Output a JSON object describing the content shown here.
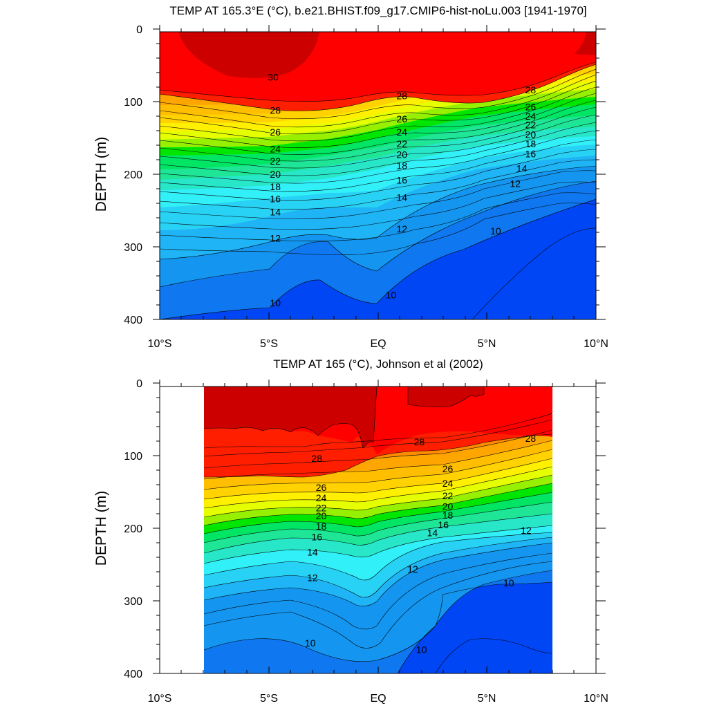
{
  "figure": {
    "panels": [
      {
        "title": "TEMP AT 165.3°E (°C), b.e21.BHIST.f09_g17.CMIP6-hist-noLu.003 [1941-1970]",
        "ylabel": "DEPTH (m)",
        "x_ticks": [
          "10°S",
          "5°S",
          "EQ",
          "5°N",
          "10°N"
        ],
        "y_ticks": [
          "0",
          "100",
          "200",
          "300",
          "400"
        ],
        "contour_labels": [
          {
            "v": "30",
            "lat": -4.8,
            "d": 66
          },
          {
            "v": "28",
            "lat": -4.7,
            "d": 112
          },
          {
            "v": "28",
            "lat": 1.1,
            "d": 92
          },
          {
            "v": "28",
            "lat": 7.0,
            "d": 84
          },
          {
            "v": "26",
            "lat": -4.7,
            "d": 142
          },
          {
            "v": "26",
            "lat": 1.1,
            "d": 124
          },
          {
            "v": "26",
            "lat": 7.0,
            "d": 107
          },
          {
            "v": "24",
            "lat": -4.7,
            "d": 165
          },
          {
            "v": "24",
            "lat": 1.1,
            "d": 142
          },
          {
            "v": "24",
            "lat": 7.0,
            "d": 120
          },
          {
            "v": "22",
            "lat": -4.7,
            "d": 182
          },
          {
            "v": "22",
            "lat": 1.1,
            "d": 158
          },
          {
            "v": "22",
            "lat": 7.0,
            "d": 132
          },
          {
            "v": "20",
            "lat": -4.7,
            "d": 200
          },
          {
            "v": "20",
            "lat": 1.1,
            "d": 173
          },
          {
            "v": "20",
            "lat": 7.0,
            "d": 145
          },
          {
            "v": "18",
            "lat": -4.7,
            "d": 217
          },
          {
            "v": "18",
            "lat": 1.1,
            "d": 188
          },
          {
            "v": "18",
            "lat": 7.0,
            "d": 158
          },
          {
            "v": "16",
            "lat": -4.7,
            "d": 234
          },
          {
            "v": "16",
            "lat": 1.1,
            "d": 208
          },
          {
            "v": "16",
            "lat": 7.0,
            "d": 172
          },
          {
            "v": "14",
            "lat": -4.7,
            "d": 252
          },
          {
            "v": "14",
            "lat": 1.1,
            "d": 232
          },
          {
            "v": "14",
            "lat": 6.6,
            "d": 192
          },
          {
            "v": "12",
            "lat": -4.7,
            "d": 288
          },
          {
            "v": "12",
            "lat": 1.1,
            "d": 275
          },
          {
            "v": "12",
            "lat": 6.3,
            "d": 213
          },
          {
            "v": "10",
            "lat": -4.7,
            "d": 377
          },
          {
            "v": "10",
            "lat": 0.6,
            "d": 366
          },
          {
            "v": "10",
            "lat": 5.4,
            "d": 278
          }
        ]
      },
      {
        "title": "TEMP AT 165 (°C), Johnson et al (2002)",
        "ylabel": "DEPTH (m)",
        "x_ticks": [
          "10°S",
          "5°S",
          "EQ",
          "5°N",
          "10°N"
        ],
        "y_ticks": [
          "0",
          "100",
          "200",
          "300",
          "400"
        ],
        "contour_labels": [
          {
            "v": "28",
            "lat": -2.8,
            "d": 104
          },
          {
            "v": "28",
            "lat": 1.9,
            "d": 81
          },
          {
            "v": "28",
            "lat": 7.0,
            "d": 76
          },
          {
            "v": "26",
            "lat": -2.6,
            "d": 144
          },
          {
            "v": "26",
            "lat": 3.2,
            "d": 118
          },
          {
            "v": "24",
            "lat": -2.6,
            "d": 158
          },
          {
            "v": "24",
            "lat": 3.2,
            "d": 138
          },
          {
            "v": "22",
            "lat": -2.6,
            "d": 172
          },
          {
            "v": "22",
            "lat": 3.2,
            "d": 155
          },
          {
            "v": "20",
            "lat": -2.6,
            "d": 183
          },
          {
            "v": "20",
            "lat": 3.2,
            "d": 170
          },
          {
            "v": "18",
            "lat": -2.6,
            "d": 197
          },
          {
            "v": "18",
            "lat": 3.2,
            "d": 182
          },
          {
            "v": "16",
            "lat": -2.8,
            "d": 212
          },
          {
            "v": "16",
            "lat": 3.0,
            "d": 195
          },
          {
            "v": "14",
            "lat": -3.0,
            "d": 233
          },
          {
            "v": "14",
            "lat": 2.5,
            "d": 206
          },
          {
            "v": "12",
            "lat": -3.0,
            "d": 268
          },
          {
            "v": "12",
            "lat": 1.6,
            "d": 256
          },
          {
            "v": "12",
            "lat": 6.8,
            "d": 203
          },
          {
            "v": "10",
            "lat": -3.1,
            "d": 358
          },
          {
            "v": "10",
            "lat": 2.0,
            "d": 367
          },
          {
            "v": "10",
            "lat": 6.0,
            "d": 275
          }
        ]
      }
    ]
  },
  "chart_data": [
    {
      "type": "contour",
      "title": "TEMP AT 165.3°E (°C), b.e21.BHIST.f09_g17.CMIP6-hist-noLu.003 [1941-1970]",
      "xlabel": "",
      "ylabel": "DEPTH (m)",
      "xlim": [
        -10,
        10
      ],
      "ylim": [
        400,
        0
      ],
      "x_tick_values": [
        -10,
        -5,
        0,
        5,
        10
      ],
      "y_tick_values": [
        0,
        100,
        200,
        300,
        400
      ],
      "data_x_range": [
        -10,
        10
      ],
      "contour_interval": 1,
      "fill_colors": {
        "<=9": "#0000e8",
        "9": "#0046f5",
        "10": "#0f78f0",
        "11": "#1496f0",
        "12": "#1fb4f5",
        "13": "#28d2f5",
        "14": "#32f0f8",
        "15": "#28e6c8",
        "16": "#1ee696",
        "17": "#00e664",
        "18": "#00e600",
        "19": "#96f000",
        "20": "#e6ff00",
        "21": "#fff000",
        "22": "#ffd200",
        "23": "#ffbe00",
        "24": "#ffa500",
        "25": "#ff8c00",
        "26": "#ff6e00",
        "27": "#ff4b00",
        "28": "#ff1e00",
        "29": "#ff0000",
        ">=30": "#cd0000"
      },
      "isotherms": [
        {
          "level": 30,
          "lat": [
            -8.4,
            -7,
            -6,
            -5,
            -4,
            -3.2,
            -2.1
          ],
          "depth": [
            0,
            38,
            60,
            66,
            59,
            48,
            0
          ]
        },
        {
          "level": 30,
          "lat": [
            9.5,
            9.4,
            9.1,
            8.5
          ],
          "depth": [
            0,
            16,
            30,
            38
          ]
        },
        {
          "level": 29,
          "lat": [
            -10,
            -8,
            -6,
            -4,
            -2,
            0,
            2,
            4,
            6,
            8,
            10
          ],
          "depth": [
            80,
            88,
            100,
            106,
            96,
            87,
            95,
            100,
            96,
            80,
            60
          ]
        },
        {
          "level": 20,
          "lat": [
            -10,
            -8,
            -6,
            -4,
            -2,
            0,
            2,
            4,
            6,
            8,
            10
          ],
          "depth": [
            188,
            193,
            196,
            193,
            182,
            172,
            170,
            162,
            148,
            132,
            118
          ]
        },
        {
          "level": 12,
          "lat": [
            -10,
            -8,
            -6,
            -4,
            -2,
            0,
            2,
            4,
            6,
            8,
            10
          ],
          "depth": [
            305,
            305,
            300,
            280,
            280,
            288,
            260,
            232,
            210,
            195,
            185
          ]
        },
        {
          "level": 10,
          "lat": [
            -10,
            -8,
            -6,
            -4,
            -2,
            -1,
            0,
            1,
            2,
            4,
            6,
            8,
            10
          ],
          "depth": [
            400,
            392,
            388,
            360,
            348,
            368,
            378,
            364,
            325,
            296,
            262,
            242,
            238
          ]
        },
        {
          "level": 9,
          "lat": [
            3.5,
            5,
            6,
            7,
            8,
            9,
            10
          ],
          "depth": [
            400,
            368,
            330,
            306,
            288,
            278,
            278
          ]
        }
      ]
    },
    {
      "type": "contour",
      "title": "TEMP AT 165 (°C), Johnson et al (2002)",
      "xlabel": "",
      "ylabel": "DEPTH (m)",
      "xlim": [
        -10,
        10
      ],
      "ylim": [
        400,
        0
      ],
      "x_tick_values": [
        -10,
        -5,
        0,
        5,
        10
      ],
      "y_tick_values": [
        0,
        100,
        200,
        300,
        400
      ],
      "data_x_range": [
        -8,
        8
      ],
      "contour_interval": 1,
      "fill_colors": {
        "<=9": "#0000e8",
        "9": "#0046f5",
        "10": "#0f78f0",
        "11": "#1496f0",
        "12": "#1fb4f5",
        "13": "#28d2f5",
        "14": "#32f0f8",
        "15": "#28e6c8",
        "16": "#1ee696",
        "17": "#00e664",
        "18": "#00e600",
        "19": "#96f000",
        "20": "#e6ff00",
        "21": "#fff000",
        "22": "#ffd200",
        "23": "#ffbe00",
        "24": "#ffa500",
        "25": "#ff8c00",
        "26": "#ff6e00",
        "27": "#ff4b00",
        "28": "#ff1e00",
        "29": "#ff0000",
        ">=30": "#cd0000"
      },
      "isotherms": [
        {
          "level": 29,
          "lat": [
            -8,
            -7,
            -6,
            -5,
            -4,
            -3,
            -2,
            -1,
            -0.5,
            0,
            1,
            2,
            3,
            4,
            5,
            6,
            7,
            8
          ],
          "depth": [
            62,
            66,
            68,
            70,
            66,
            72,
            80,
            86,
            92,
            85,
            72,
            66,
            60,
            56,
            60,
            66,
            72,
            72
          ]
        },
        {
          "level": 20,
          "lat": [
            -8,
            -7,
            -6,
            -5,
            -4,
            -3,
            -2,
            -1,
            0,
            1,
            2,
            3,
            4,
            5,
            6,
            7,
            8
          ],
          "depth": [
            212,
            206,
            198,
            190,
            188,
            187,
            182,
            178,
            180,
            175,
            172,
            172,
            170,
            160,
            148,
            138,
            128
          ]
        },
        {
          "level": 12,
          "lat": [
            -8,
            -7,
            -6,
            -5,
            -4,
            -3,
            -2,
            -1,
            0,
            1,
            2,
            3,
            4,
            5,
            6,
            7,
            8
          ],
          "depth": [
            295,
            290,
            283,
            278,
            276,
            273,
            268,
            262,
            282,
            262,
            238,
            225,
            222,
            218,
            213,
            208,
            200
          ]
        },
        {
          "level": 10,
          "lat": [
            -8,
            -7,
            -6,
            -5,
            -4,
            -3,
            -2,
            -1,
            0,
            1,
            2,
            3,
            4,
            5,
            6,
            7,
            8
          ],
          "depth": [
            385,
            380,
            370,
            350,
            340,
            350,
            365,
            380,
            385,
            372,
            360,
            300,
            290,
            282,
            278,
            282,
            268
          ]
        },
        {
          "level": 9,
          "lat": [
            2.9,
            4,
            5,
            6,
            7,
            8
          ],
          "depth": [
            400,
            360,
            350,
            352,
            362,
            372
          ]
        }
      ]
    }
  ]
}
